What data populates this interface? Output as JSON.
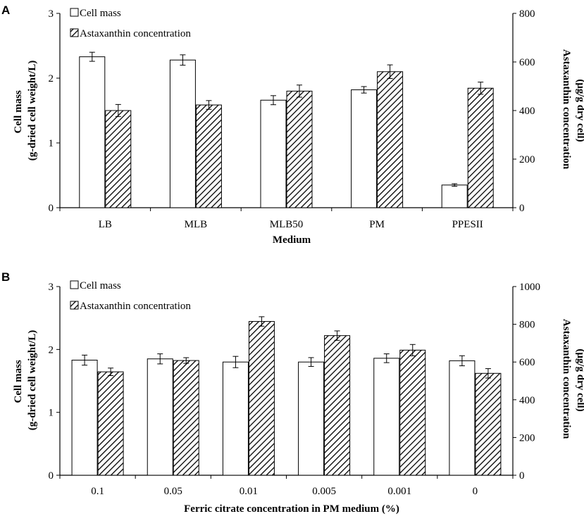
{
  "chart_data": [
    {
      "type": "bar",
      "panel": "A",
      "xlabel": "Medium",
      "ylabel_left": [
        "Cell mass",
        "(g-dried cell weight/L)"
      ],
      "ylabel_right": [
        "Astaxanthin concentration",
        "(μg/g dry cell)"
      ],
      "ylim_left": [
        0,
        3
      ],
      "ylim_right": [
        0,
        800
      ],
      "left_ticks": [
        "0",
        "1",
        "2",
        "3"
      ],
      "right_ticks": [
        "0",
        "200",
        "400",
        "600",
        "800"
      ],
      "categories": [
        "LB",
        "MLB",
        "MLB50",
        "PM",
        "PPESII"
      ],
      "series": [
        {
          "name": "Cell mass",
          "axis": "left",
          "values": [
            2.33,
            2.28,
            1.66,
            1.82,
            0.35
          ],
          "errors": [
            0.07,
            0.08,
            0.07,
            0.05,
            0.02
          ]
        },
        {
          "name": "Astaxanthin concentration",
          "axis": "right",
          "values": [
            400,
            423,
            480,
            560,
            492
          ],
          "errors": [
            25,
            18,
            25,
            28,
            25
          ]
        }
      ]
    },
    {
      "type": "bar",
      "panel": "B",
      "xlabel": "Ferric citrate concentration in PM medium (%)",
      "ylabel_left": [
        "Cell mass",
        "(g-dried cell weight/L)"
      ],
      "ylabel_right": [
        "Astaxanthin concentration",
        "(μg/g dry cell)"
      ],
      "ylim_left": [
        0,
        3
      ],
      "ylim_right": [
        0,
        1000
      ],
      "left_ticks": [
        "0",
        "1",
        "2",
        "3"
      ],
      "right_ticks": [
        "0",
        "200",
        "400",
        "600",
        "800",
        "1000"
      ],
      "categories": [
        "0.1",
        "0.05",
        "0.01",
        "0.005",
        "0.001",
        "0"
      ],
      "series": [
        {
          "name": "Cell mass",
          "axis": "left",
          "values": [
            1.83,
            1.85,
            1.8,
            1.8,
            1.86,
            1.82
          ],
          "errors": [
            0.08,
            0.08,
            0.09,
            0.07,
            0.07,
            0.08
          ]
        },
        {
          "name": "Astaxanthin concentration",
          "axis": "right",
          "values": [
            548,
            608,
            815,
            740,
            663,
            540
          ],
          "errors": [
            20,
            15,
            25,
            25,
            30,
            25
          ]
        }
      ]
    }
  ]
}
